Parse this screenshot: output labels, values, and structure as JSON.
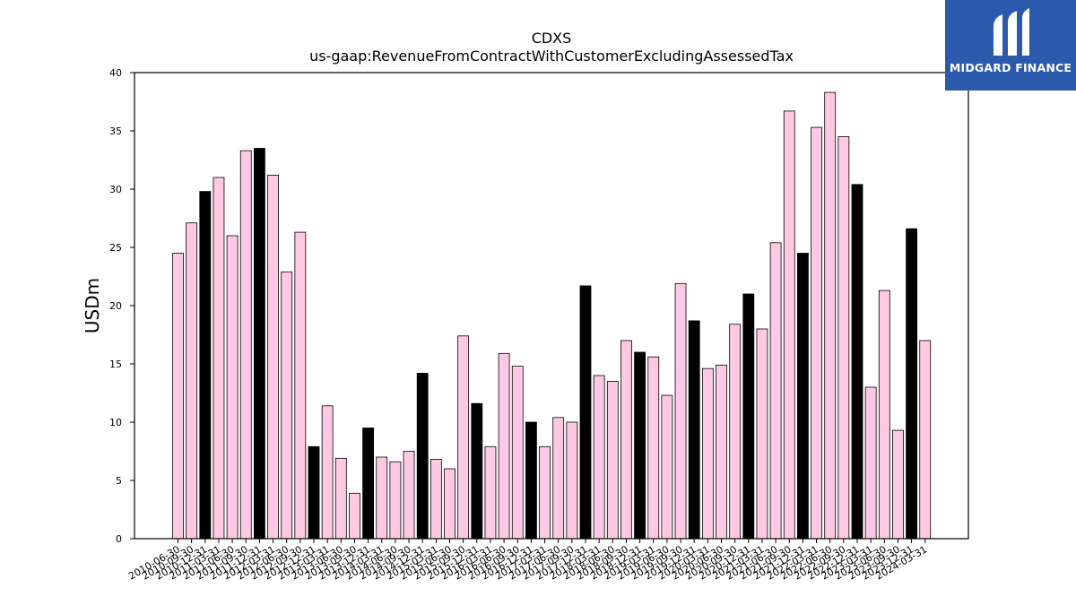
{
  "chart_data": {
    "type": "bar",
    "title": "CDXS",
    "subtitle": "us-gaap:RevenueFromContractWithCustomerExcludingAssessedTax",
    "xlabel": "",
    "ylabel": "USDm",
    "ylim": [
      0,
      40
    ],
    "yticks": [
      0,
      5,
      10,
      15,
      20,
      25,
      30,
      35,
      40
    ],
    "grid": false,
    "colors": {
      "quarter": "#ffc9e4",
      "annual": "#000000",
      "edge": "#000000"
    },
    "bars": [
      {
        "label": "2010-06-30",
        "value": 24.5,
        "annual": false
      },
      {
        "label": "2010-09-30",
        "value": 27.1,
        "annual": false
      },
      {
        "label": "2010-12-31",
        "value": 29.8,
        "annual": true
      },
      {
        "label": "2011-03-31",
        "value": 31.0,
        "annual": false
      },
      {
        "label": "2011-06-30",
        "value": 26.0,
        "annual": false
      },
      {
        "label": "2011-09-30",
        "value": 33.3,
        "annual": false
      },
      {
        "label": "2011-12-31",
        "value": 33.5,
        "annual": true
      },
      {
        "label": "2012-03-31",
        "value": 31.2,
        "annual": false
      },
      {
        "label": "2012-06-30",
        "value": 22.9,
        "annual": false
      },
      {
        "label": "2012-09-30",
        "value": 26.3,
        "annual": false
      },
      {
        "label": "2012-12-31",
        "value": 7.9,
        "annual": true
      },
      {
        "label": "2013-03-31",
        "value": 11.4,
        "annual": false
      },
      {
        "label": "2013-06-30",
        "value": 6.9,
        "annual": false
      },
      {
        "label": "2013-09-30",
        "value": 3.9,
        "annual": false
      },
      {
        "label": "2013-12-31",
        "value": 9.5,
        "annual": true
      },
      {
        "label": "2014-03-31",
        "value": 7.0,
        "annual": false
      },
      {
        "label": "2014-06-30",
        "value": 6.6,
        "annual": false
      },
      {
        "label": "2014-09-30",
        "value": 7.5,
        "annual": false
      },
      {
        "label": "2014-12-31",
        "value": 14.2,
        "annual": true
      },
      {
        "label": "2015-03-31",
        "value": 6.8,
        "annual": false
      },
      {
        "label": "2015-06-30",
        "value": 6.0,
        "annual": false
      },
      {
        "label": "2015-09-30",
        "value": 17.4,
        "annual": false
      },
      {
        "label": "2015-12-31",
        "value": 11.6,
        "annual": true
      },
      {
        "label": "2016-03-31",
        "value": 7.9,
        "annual": false
      },
      {
        "label": "2016-06-30",
        "value": 15.9,
        "annual": false
      },
      {
        "label": "2016-09-30",
        "value": 14.8,
        "annual": false
      },
      {
        "label": "2016-12-31",
        "value": 10.0,
        "annual": true
      },
      {
        "label": "2017-03-31",
        "value": 7.9,
        "annual": false
      },
      {
        "label": "2017-06-30",
        "value": 10.4,
        "annual": false
      },
      {
        "label": "2017-09-30",
        "value": 10.0,
        "annual": false
      },
      {
        "label": "2017-12-31",
        "value": 21.7,
        "annual": true
      },
      {
        "label": "2018-03-31",
        "value": 14.0,
        "annual": false
      },
      {
        "label": "2018-06-30",
        "value": 13.5,
        "annual": false
      },
      {
        "label": "2018-09-30",
        "value": 17.0,
        "annual": false
      },
      {
        "label": "2018-12-31",
        "value": 16.0,
        "annual": true
      },
      {
        "label": "2019-03-31",
        "value": 15.6,
        "annual": false
      },
      {
        "label": "2019-06-30",
        "value": 12.3,
        "annual": false
      },
      {
        "label": "2019-09-30",
        "value": 21.9,
        "annual": false
      },
      {
        "label": "2019-12-31",
        "value": 18.7,
        "annual": true
      },
      {
        "label": "2020-03-31",
        "value": 14.6,
        "annual": false
      },
      {
        "label": "2020-06-30",
        "value": 14.9,
        "annual": false
      },
      {
        "label": "2020-09-30",
        "value": 18.4,
        "annual": false
      },
      {
        "label": "2020-12-31",
        "value": 21.0,
        "annual": true
      },
      {
        "label": "2021-03-31",
        "value": 18.0,
        "annual": false
      },
      {
        "label": "2021-06-30",
        "value": 25.4,
        "annual": false
      },
      {
        "label": "2021-09-30",
        "value": 36.7,
        "annual": false
      },
      {
        "label": "2021-12-31",
        "value": 24.5,
        "annual": true
      },
      {
        "label": "2022-03-31",
        "value": 35.3,
        "annual": false
      },
      {
        "label": "2022-06-30",
        "value": 38.3,
        "annual": false
      },
      {
        "label": "2022-09-30",
        "value": 34.5,
        "annual": false
      },
      {
        "label": "2022-12-31",
        "value": 30.4,
        "annual": true
      },
      {
        "label": "2023-03-31",
        "value": 13.0,
        "annual": false
      },
      {
        "label": "2023-06-30",
        "value": 21.3,
        "annual": false
      },
      {
        "label": "2023-09-30",
        "value": 9.3,
        "annual": false
      },
      {
        "label": "2023-12-31",
        "value": 26.6,
        "annual": true
      },
      {
        "label": "2024-03-31",
        "value": 17.0,
        "annual": false
      }
    ]
  },
  "logo": {
    "text": "MIDGARD FINANCE",
    "background": "#2b5aad",
    "icon": "midgard-m-logo-icon"
  }
}
